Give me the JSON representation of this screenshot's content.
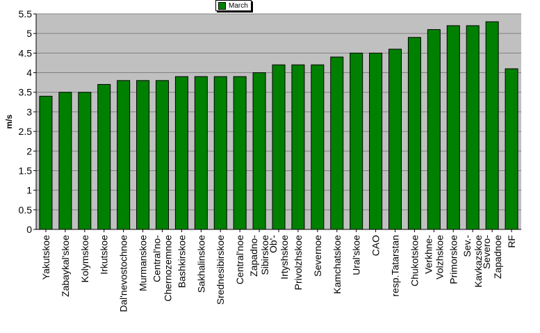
{
  "chart_data": {
    "type": "bar",
    "title": "",
    "xlabel": "",
    "ylabel": "m/s",
    "ylim": [
      0,
      5.5
    ],
    "yticks": [
      "0",
      "0.5",
      "1",
      "1.5",
      "2",
      "2.5",
      "3",
      "3.5",
      "4",
      "4.5",
      "5",
      "5.5"
    ],
    "grid": true,
    "legend_position": "top-center",
    "categories": [
      "Yakutskoe",
      "Zabaykal'skoe",
      "Kolymskoe",
      "Irkutskoe",
      "Dal'nevostochnoe",
      "Murmanskoe",
      "Central'no-Chernozemnoe",
      "Bashkirskoe",
      "Sakhalinskoe",
      "Srednesibirskoe",
      "Central'noe",
      "Zapadno-Sibirskoe",
      "Ob'-Irtyshskoe",
      "Privolzhskoe",
      "Severnoe",
      "Kamchatskoe",
      "Ural'skoe",
      "CAO",
      "resp.Tatarstan",
      "Chukotskoe",
      "Verkhne-Volzhskoe",
      "Primorskoe",
      "Sev.-Kavkazskoe",
      "Severo-Zapadnoe",
      "RF"
    ],
    "label_lines": [
      [
        "Yakutskoe"
      ],
      [
        "Zabaykal'skoe"
      ],
      [
        "Kolymskoe"
      ],
      [
        "Irkutskoe"
      ],
      [
        "Dal'nevostochnoe"
      ],
      [
        "Murmanskoe"
      ],
      [
        "Central'no-",
        "Chernozemnoe"
      ],
      [
        "Bashkirskoe"
      ],
      [
        "Sakhalinskoe"
      ],
      [
        "Srednesibirskoe"
      ],
      [
        "Central'noe"
      ],
      [
        "Zapadno-",
        "Sibirskoe"
      ],
      [
        "Ob'-",
        "Irtyshskoe"
      ],
      [
        "Privolzhskoe"
      ],
      [
        "Severnoe"
      ],
      [
        "Kamchatskoe"
      ],
      [
        "Ural'skoe"
      ],
      [
        "CAO"
      ],
      [
        "resp.Tatarstan"
      ],
      [
        "Chukotskoe"
      ],
      [
        "Verkhne-",
        "Volzhskoe"
      ],
      [
        "Primorskoe"
      ],
      [
        "Sev.-",
        "Kavkazskoe"
      ],
      [
        "Severo-",
        "Zapadnoe"
      ],
      [
        "RF"
      ]
    ],
    "series": [
      {
        "name": "March",
        "color": "#008000",
        "values": [
          3.4,
          3.5,
          3.5,
          3.7,
          3.8,
          3.8,
          3.8,
          3.9,
          3.9,
          3.9,
          3.9,
          4.0,
          4.2,
          4.2,
          4.2,
          4.4,
          4.5,
          4.5,
          4.6,
          4.9,
          5.1,
          5.2,
          5.2,
          5.3,
          4.1
        ]
      }
    ],
    "colors": {
      "plot_background": "#c0c0c0",
      "bar": "#008000",
      "bar_edge": "#000000",
      "grid": "#808080"
    }
  },
  "legend": {
    "label": "March"
  }
}
